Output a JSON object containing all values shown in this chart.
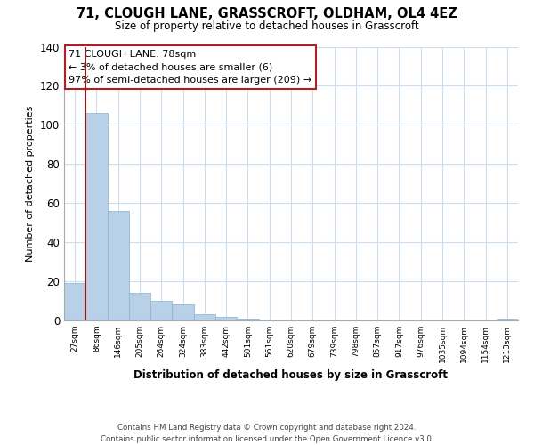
{
  "title": "71, CLOUGH LANE, GRASSCROFT, OLDHAM, OL4 4EZ",
  "subtitle": "Size of property relative to detached houses in Grasscroft",
  "xlabel": "Distribution of detached houses by size in Grasscroft",
  "ylabel": "Number of detached properties",
  "bar_labels": [
    "27sqm",
    "86sqm",
    "146sqm",
    "205sqm",
    "264sqm",
    "324sqm",
    "383sqm",
    "442sqm",
    "501sqm",
    "561sqm",
    "620sqm",
    "679sqm",
    "739sqm",
    "798sqm",
    "857sqm",
    "917sqm",
    "976sqm",
    "1035sqm",
    "1094sqm",
    "1154sqm",
    "1213sqm"
  ],
  "bar_values": [
    19,
    106,
    56,
    14,
    10,
    8,
    3,
    2,
    1,
    0,
    0,
    0,
    0,
    0,
    0,
    0,
    0,
    0,
    0,
    0,
    1
  ],
  "red_line_after_index": 0,
  "bar_color": "#b8d0e8",
  "highlight_line_color": "#8b1a1a",
  "ylim": [
    0,
    140
  ],
  "yticks": [
    0,
    20,
    40,
    60,
    80,
    100,
    120,
    140
  ],
  "annotation_title": "71 CLOUGH LANE: 78sqm",
  "annotation_line1": "← 3% of detached houses are smaller (6)",
  "annotation_line2": "97% of semi-detached houses are larger (209) →",
  "annotation_box_color": "#ffffff",
  "annotation_border_color": "#b02020",
  "footer_line1": "Contains HM Land Registry data © Crown copyright and database right 2024.",
  "footer_line2": "Contains public sector information licensed under the Open Government Licence v3.0.",
  "background_color": "#ffffff",
  "grid_color": "#ccdded"
}
